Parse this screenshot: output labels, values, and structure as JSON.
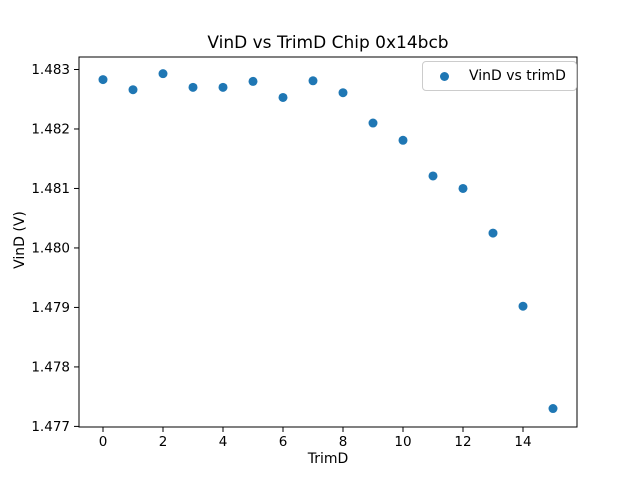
{
  "chart_data": {
    "type": "scatter",
    "title": "VinD vs TrimD Chip 0x14bcb",
    "xlabel": "TrimD",
    "ylabel": "VinD (V)",
    "legend": {
      "label": "VinD vs trimD",
      "position": "upper right"
    },
    "marker_color": "#1f77b4",
    "x": [
      0,
      1,
      2,
      3,
      4,
      5,
      6,
      7,
      8,
      9,
      10,
      11,
      12,
      13,
      14,
      15
    ],
    "y": [
      1.48283,
      1.48266,
      1.48293,
      1.4827,
      1.4827,
      1.4828,
      1.48253,
      1.48281,
      1.48261,
      1.4821,
      1.48181,
      1.48121,
      1.481,
      1.48025,
      1.47902,
      1.4773
    ],
    "xlim": [
      -0.8,
      15.8
    ],
    "ylim": [
      1.47699,
      1.48321
    ],
    "x_ticks": [
      0,
      2,
      4,
      6,
      8,
      10,
      12,
      14
    ],
    "x_tick_labels": [
      "0",
      "2",
      "4",
      "6",
      "8",
      "10",
      "12",
      "14"
    ],
    "y_ticks": [
      1.477,
      1.478,
      1.479,
      1.48,
      1.481,
      1.482,
      1.483
    ],
    "y_tick_labels": [
      "1.477",
      "1.478",
      "1.479",
      "1.480",
      "1.481",
      "1.482",
      "1.483"
    ],
    "grid": false,
    "axes_color": "#000000"
  }
}
